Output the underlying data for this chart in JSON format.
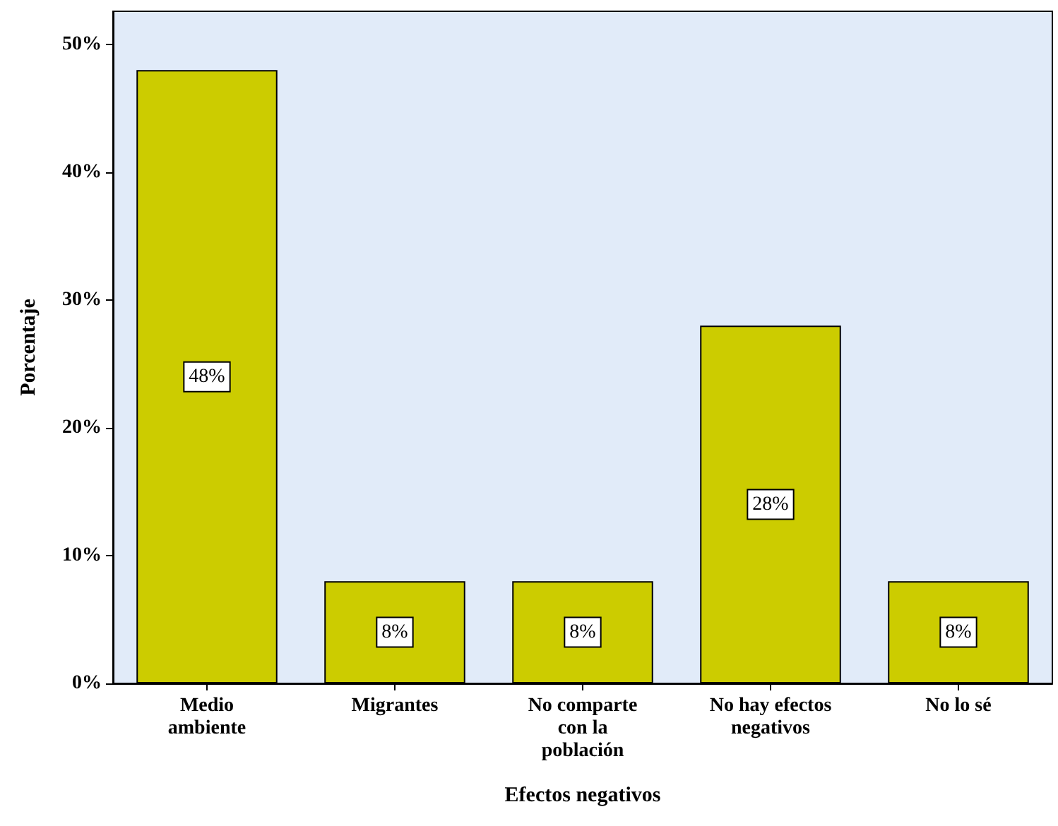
{
  "chart_data": {
    "type": "bar",
    "xlabel": "Efectos negativos",
    "ylabel": "Porcentaje",
    "categories": [
      "Medio\nambiente",
      "Migrantes",
      "No comparte\ncon la\npoblación",
      "No hay efectos\nnegativos",
      "No lo sé"
    ],
    "values": [
      48,
      8,
      8,
      28,
      8
    ],
    "value_labels": [
      "48%",
      "8%",
      "8%",
      "28%",
      "8%"
    ],
    "color": "#cccc00",
    "ylim": [
      0,
      52.6
    ],
    "yticks": [
      {
        "value": 0,
        "label": "0%"
      },
      {
        "value": 10,
        "label": "10%"
      },
      {
        "value": 20,
        "label": "20%"
      },
      {
        "value": 30,
        "label": "30%"
      },
      {
        "value": 40,
        "label": "40%"
      },
      {
        "value": 50,
        "label": "50%"
      }
    ],
    "grid": false
  }
}
